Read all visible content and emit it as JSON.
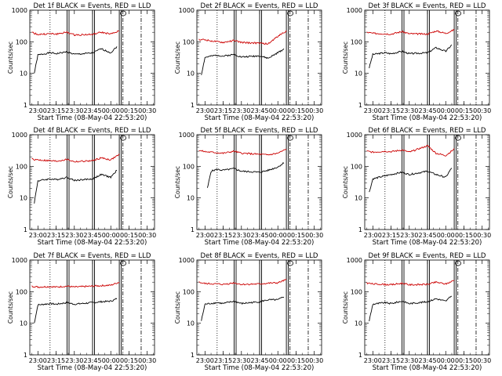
{
  "figure": {
    "xlabel": "Start Time (08-May-04 22:53:20)",
    "ylabel": "Counts/sec",
    "x_tick_labels": [
      "23:00",
      "23:15",
      "23:30",
      "23:45",
      "00:00",
      "00:15",
      "00:30"
    ],
    "y_tick_labels": [
      "1",
      "10",
      "100",
      "1000"
    ],
    "colors": {
      "events": "#000000",
      "lld": "#cc0000",
      "axes": "#000000",
      "background": "#ffffff"
    }
  },
  "chart_data": [
    {
      "type": "line",
      "title": "Det 1f BLACK = Events, RED = LLD",
      "yscale": "log",
      "ylim": [
        1,
        1000
      ],
      "xlim": [
        "22:53:20",
        "00:36:00"
      ],
      "x_ticks": [
        "23:00",
        "23:15",
        "23:30",
        "23:45",
        "00:00",
        "00:15",
        "00:30"
      ],
      "markers": {
        "dotted": [
          "23:10"
        ],
        "solid": [
          "23:24",
          "23:45",
          "00:07"
        ],
        "dashdot": [
          "00:10",
          "00:25"
        ]
      },
      "series": [
        {
          "name": "Events",
          "color": "#000000",
          "x": [
            "22:57",
            "23:00",
            "23:10",
            "23:15",
            "23:24",
            "23:30",
            "23:45",
            "23:52",
            "00:00",
            "00:05"
          ],
          "y": [
            10,
            38,
            45,
            42,
            48,
            40,
            44,
            60,
            45,
            70
          ]
        },
        {
          "name": "LLD",
          "color": "#cc0000",
          "x": [
            "22:55",
            "23:00",
            "23:10",
            "23:15",
            "23:24",
            "23:30",
            "23:45",
            "23:52",
            "00:00",
            "00:07"
          ],
          "y": [
            200,
            170,
            180,
            175,
            200,
            165,
            170,
            200,
            175,
            220
          ]
        }
      ]
    },
    {
      "type": "line",
      "title": "Det 2f BLACK = Events, RED = LLD",
      "yscale": "log",
      "ylim": [
        1,
        1000
      ],
      "xlim": [
        "22:53:20",
        "00:36:00"
      ],
      "x_ticks": [
        "23:00",
        "23:15",
        "23:30",
        "23:45",
        "00:00",
        "00:15",
        "00:30"
      ],
      "markers": {
        "dotted": [
          "23:10"
        ],
        "solid": [
          "23:24",
          "23:45",
          "00:07"
        ],
        "dashdot": [
          "00:10",
          "00:25"
        ]
      },
      "series": [
        {
          "name": "Events",
          "color": "#000000",
          "x": [
            "22:57",
            "23:00",
            "23:10",
            "23:15",
            "23:24",
            "23:30",
            "23:45",
            "23:52",
            "00:00",
            "00:05"
          ],
          "y": [
            9,
            32,
            38,
            35,
            40,
            33,
            36,
            30,
            45,
            60
          ]
        },
        {
          "name": "LLD",
          "color": "#cc0000",
          "x": [
            "22:55",
            "23:00",
            "23:10",
            "23:15",
            "23:24",
            "23:30",
            "23:45",
            "23:52",
            "00:00",
            "00:07"
          ],
          "y": [
            120,
            115,
            100,
            95,
            110,
            95,
            90,
            85,
            150,
            220
          ]
        }
      ]
    },
    {
      "type": "line",
      "title": "Det 3f BLACK = Events, RED = LLD",
      "yscale": "log",
      "ylim": [
        1,
        1000
      ],
      "xlim": [
        "22:53:20",
        "00:36:00"
      ],
      "x_ticks": [
        "23:00",
        "23:15",
        "23:30",
        "23:45",
        "00:00",
        "00:15",
        "00:30"
      ],
      "markers": {
        "dotted": [
          "23:10"
        ],
        "solid": [
          "23:24",
          "23:45",
          "00:07"
        ],
        "dashdot": [
          "00:10",
          "00:25"
        ]
      },
      "series": [
        {
          "name": "Events",
          "color": "#000000",
          "x": [
            "22:57",
            "23:00",
            "23:10",
            "23:15",
            "23:24",
            "23:30",
            "23:45",
            "23:52",
            "00:00",
            "00:05"
          ],
          "y": [
            15,
            40,
            45,
            42,
            50,
            42,
            45,
            65,
            50,
            80
          ]
        },
        {
          "name": "LLD",
          "color": "#cc0000",
          "x": [
            "22:55",
            "23:00",
            "23:10",
            "23:15",
            "23:24",
            "23:30",
            "23:45",
            "23:52",
            "00:00",
            "00:07"
          ],
          "y": [
            200,
            185,
            180,
            175,
            210,
            180,
            175,
            220,
            185,
            240
          ]
        }
      ]
    },
    {
      "type": "line",
      "title": "Det 4f BLACK = Events, RED = LLD",
      "yscale": "log",
      "ylim": [
        1,
        1000
      ],
      "xlim": [
        "22:53:20",
        "00:36:00"
      ],
      "x_ticks": [
        "23:00",
        "23:15",
        "23:30",
        "23:45",
        "00:00",
        "00:15",
        "00:30"
      ],
      "markers": {
        "dotted": [
          "23:10"
        ],
        "solid": [
          "23:24",
          "23:45",
          "00:07"
        ],
        "dashdot": [
          "00:10",
          "00:25"
        ]
      },
      "series": [
        {
          "name": "Events",
          "color": "#000000",
          "x": [
            "22:57",
            "23:00",
            "23:10",
            "23:15",
            "23:24",
            "23:30",
            "23:45",
            "23:52",
            "00:00",
            "00:05"
          ],
          "y": [
            7,
            35,
            40,
            38,
            45,
            36,
            40,
            55,
            45,
            75
          ]
        },
        {
          "name": "LLD",
          "color": "#cc0000",
          "x": [
            "22:55",
            "23:00",
            "23:10",
            "23:15",
            "23:24",
            "23:30",
            "23:45",
            "23:52",
            "00:00",
            "00:07"
          ],
          "y": [
            170,
            160,
            150,
            145,
            165,
            140,
            150,
            185,
            160,
            240
          ]
        }
      ]
    },
    {
      "type": "line",
      "title": "Det 5f BLACK = Events, RED = LLD",
      "yscale": "log",
      "ylim": [
        1,
        1000
      ],
      "xlim": [
        "22:53:20",
        "00:36:00"
      ],
      "x_ticks": [
        "23:00",
        "23:15",
        "23:30",
        "23:45",
        "00:00",
        "00:15",
        "00:30"
      ],
      "markers": {
        "dotted": [
          "23:10"
        ],
        "solid": [
          "23:24",
          "23:45",
          "00:07"
        ],
        "dashdot": [
          "00:10",
          "00:25"
        ]
      },
      "series": [
        {
          "name": "Events",
          "color": "#000000",
          "x": [
            "23:02",
            "23:05",
            "23:10",
            "23:15",
            "23:24",
            "23:30",
            "23:45",
            "23:52",
            "00:00",
            "00:05"
          ],
          "y": [
            20,
            70,
            80,
            75,
            85,
            70,
            65,
            75,
            95,
            130
          ]
        },
        {
          "name": "LLD",
          "color": "#cc0000",
          "x": [
            "22:55",
            "23:00",
            "23:10",
            "23:15",
            "23:24",
            "23:30",
            "23:45",
            "23:52",
            "00:00",
            "00:07"
          ],
          "y": [
            320,
            290,
            270,
            260,
            300,
            260,
            240,
            230,
            260,
            350
          ]
        }
      ]
    },
    {
      "type": "line",
      "title": "Det 6f BLACK = Events, RED = LLD",
      "yscale": "log",
      "ylim": [
        1,
        1000
      ],
      "xlim": [
        "22:53:20",
        "00:36:00"
      ],
      "x_ticks": [
        "23:00",
        "23:15",
        "23:30",
        "23:45",
        "00:00",
        "00:15",
        "00:30"
      ],
      "markers": {
        "dotted": [
          "23:10"
        ],
        "solid": [
          "23:24",
          "23:45",
          "00:07"
        ],
        "dashdot": [
          "00:10",
          "00:25"
        ]
      },
      "series": [
        {
          "name": "Events",
          "color": "#000000",
          "x": [
            "22:57",
            "23:00",
            "23:10",
            "23:15",
            "23:24",
            "23:30",
            "23:45",
            "23:52",
            "00:00",
            "00:05"
          ],
          "y": [
            15,
            40,
            50,
            55,
            65,
            55,
            70,
            55,
            45,
            90
          ]
        },
        {
          "name": "LLD",
          "color": "#cc0000",
          "x": [
            "22:55",
            "23:00",
            "23:10",
            "23:15",
            "23:24",
            "23:30",
            "23:45",
            "23:52",
            "00:00",
            "00:07"
          ],
          "y": [
            300,
            280,
            300,
            290,
            330,
            280,
            450,
            260,
            220,
            350
          ]
        }
      ]
    },
    {
      "type": "line",
      "title": "Det 7f BLACK = Events, RED = LLD",
      "yscale": "log",
      "ylim": [
        1,
        1000
      ],
      "xlim": [
        "22:53:20",
        "00:36:00"
      ],
      "x_ticks": [
        "23:00",
        "23:15",
        "23:30",
        "23:45",
        "00:00",
        "00:15",
        "00:30"
      ],
      "markers": {
        "dotted": [
          "23:10"
        ],
        "solid": [
          "23:24",
          "23:45",
          "00:07"
        ],
        "dashdot": [
          "00:10",
          "00:25"
        ]
      },
      "series": [
        {
          "name": "Events",
          "color": "#000000",
          "x": [
            "22:57",
            "23:00",
            "23:10",
            "23:15",
            "23:24",
            "23:30",
            "23:45",
            "23:52",
            "00:00",
            "00:05"
          ],
          "y": [
            10,
            38,
            42,
            40,
            45,
            40,
            45,
            48,
            50,
            60
          ]
        },
        {
          "name": "LLD",
          "color": "#cc0000",
          "x": [
            "22:55",
            "23:00",
            "23:10",
            "23:15",
            "23:24",
            "23:30",
            "23:45",
            "23:52",
            "00:00",
            "00:07"
          ],
          "y": [
            150,
            140,
            145,
            140,
            150,
            140,
            150,
            155,
            160,
            200
          ]
        }
      ]
    },
    {
      "type": "line",
      "title": "Det 8f BLACK = Events, RED = LLD",
      "yscale": "log",
      "ylim": [
        1,
        1000
      ],
      "xlim": [
        "22:53:20",
        "00:36:00"
      ],
      "x_ticks": [
        "23:00",
        "23:15",
        "23:30",
        "23:45",
        "00:00",
        "00:15",
        "00:30"
      ],
      "markers": {
        "dotted": [
          "23:10"
        ],
        "solid": [
          "23:24",
          "23:45",
          "00:07"
        ],
        "dashdot": [
          "00:10",
          "00:25"
        ]
      },
      "series": [
        {
          "name": "Events",
          "color": "#000000",
          "x": [
            "22:57",
            "23:00",
            "23:10",
            "23:15",
            "23:24",
            "23:30",
            "23:45",
            "23:52",
            "00:00",
            "00:05"
          ],
          "y": [
            12,
            40,
            45,
            42,
            50,
            42,
            48,
            55,
            55,
            70
          ]
        },
        {
          "name": "LLD",
          "color": "#cc0000",
          "x": [
            "22:55",
            "23:00",
            "23:10",
            "23:15",
            "23:24",
            "23:30",
            "23:45",
            "23:52",
            "00:00",
            "00:07"
          ],
          "y": [
            200,
            180,
            175,
            170,
            190,
            170,
            175,
            185,
            190,
            240
          ]
        }
      ]
    },
    {
      "type": "line",
      "title": "Det 9f BLACK = Events, RED = LLD",
      "yscale": "log",
      "ylim": [
        1,
        1000
      ],
      "xlim": [
        "22:53:20",
        "00:36:00"
      ],
      "x_ticks": [
        "23:00",
        "23:15",
        "23:30",
        "23:45",
        "00:00",
        "00:15",
        "00:30"
      ],
      "markers": {
        "dotted": [
          "23:10"
        ],
        "solid": [
          "23:24",
          "23:45",
          "00:07"
        ],
        "dashdot": [
          "00:10",
          "00:25"
        ]
      },
      "series": [
        {
          "name": "Events",
          "color": "#000000",
          "x": [
            "22:57",
            "23:00",
            "23:10",
            "23:15",
            "23:24",
            "23:30",
            "23:45",
            "23:52",
            "00:00",
            "00:05"
          ],
          "y": [
            12,
            40,
            45,
            42,
            50,
            42,
            48,
            60,
            50,
            75
          ]
        },
        {
          "name": "LLD",
          "color": "#cc0000",
          "x": [
            "22:55",
            "23:00",
            "23:10",
            "23:15",
            "23:24",
            "23:30",
            "23:45",
            "23:52",
            "00:00",
            "00:07"
          ],
          "y": [
            190,
            175,
            170,
            165,
            185,
            165,
            170,
            200,
            175,
            230
          ]
        }
      ]
    }
  ]
}
